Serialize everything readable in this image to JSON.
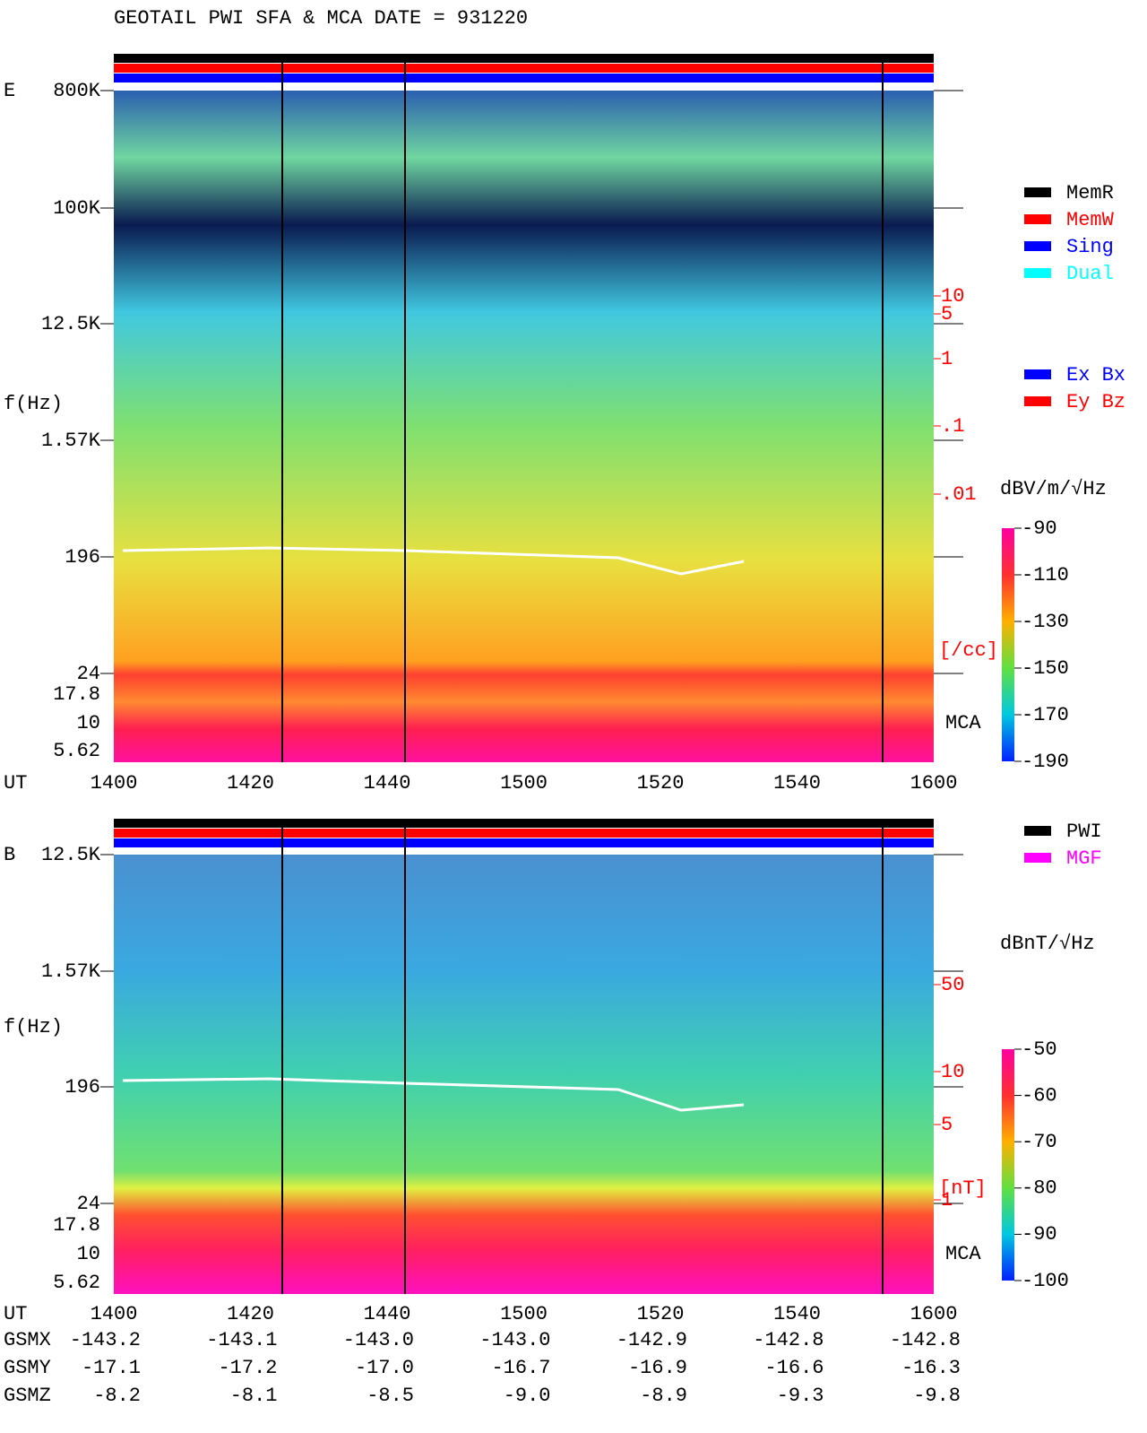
{
  "header": {
    "title": "GEOTAIL  PWI SFA & MCA   DATE = 931220"
  },
  "panels": [
    {
      "label": "E",
      "y_axis_label": "f(Hz)",
      "yticks": [
        "800K",
        "100K",
        "12.5K",
        "1.57K",
        "196",
        "24"
      ],
      "mca_ticks": [
        "17.8",
        "10",
        "5.62"
      ],
      "mca_label": "MCA",
      "x_axis_label": "UT",
      "xticks": [
        "1400",
        "1420",
        "1440",
        "1500",
        "1520",
        "1540",
        "1600"
      ],
      "density_ticks": [
        "10",
        "5",
        "1",
        ".1",
        ".01"
      ],
      "density_unit": "[/cc]",
      "colorbar": {
        "unit": "dBV/m/√Hz",
        "ticks": [
          "-90",
          "-110",
          "-130",
          "-150",
          "-170",
          "-190"
        ]
      }
    },
    {
      "label": "B",
      "y_axis_label": "f(Hz)",
      "yticks": [
        "12.5K",
        "1.57K",
        "196",
        "24"
      ],
      "mca_ticks": [
        "17.8",
        "10",
        "5.62"
      ],
      "mca_label": "MCA",
      "x_axis_label": "UT",
      "xticks": [
        "1400",
        "1420",
        "1440",
        "1500",
        "1520",
        "1540",
        "1600"
      ],
      "density_ticks": [
        "50",
        "10",
        "5",
        "1"
      ],
      "density_unit": "[nT]",
      "colorbar": {
        "unit": "dBnT/√Hz",
        "ticks": [
          "-50",
          "-60",
          "-70",
          "-80",
          "-90",
          "-100"
        ]
      }
    }
  ],
  "legends": {
    "mode": [
      {
        "label": "MemR",
        "color": "#000000"
      },
      {
        "label": "MemW",
        "color": "#ff0000"
      },
      {
        "label": "Sing",
        "color": "#0000ff"
      },
      {
        "label": "Dual",
        "color": "#00ffff"
      }
    ],
    "component": [
      {
        "label": "Ex Bx",
        "color": "#0000ff"
      },
      {
        "label": "Ey Bz",
        "color": "#ff0000"
      }
    ],
    "source": [
      {
        "label": "PWI",
        "color": "#000000"
      },
      {
        "label": "MGF",
        "color": "#ff00ff"
      }
    ]
  },
  "orbit": {
    "rows": [
      {
        "label": "GSMX",
        "values": [
          "-143.2",
          "-143.1",
          "-143.0",
          "-143.0",
          "-142.9",
          "-142.8",
          "-142.8"
        ]
      },
      {
        "label": "GSMY",
        "values": [
          "-17.1",
          "-17.2",
          "-17.0",
          "-16.7",
          "-16.9",
          "-16.6",
          "-16.3"
        ]
      },
      {
        "label": "GSMZ",
        "values": [
          "-8.2",
          "-8.1",
          "-8.5",
          "-9.0",
          "-8.9",
          "-9.3",
          "-9.8"
        ]
      }
    ]
  }
}
